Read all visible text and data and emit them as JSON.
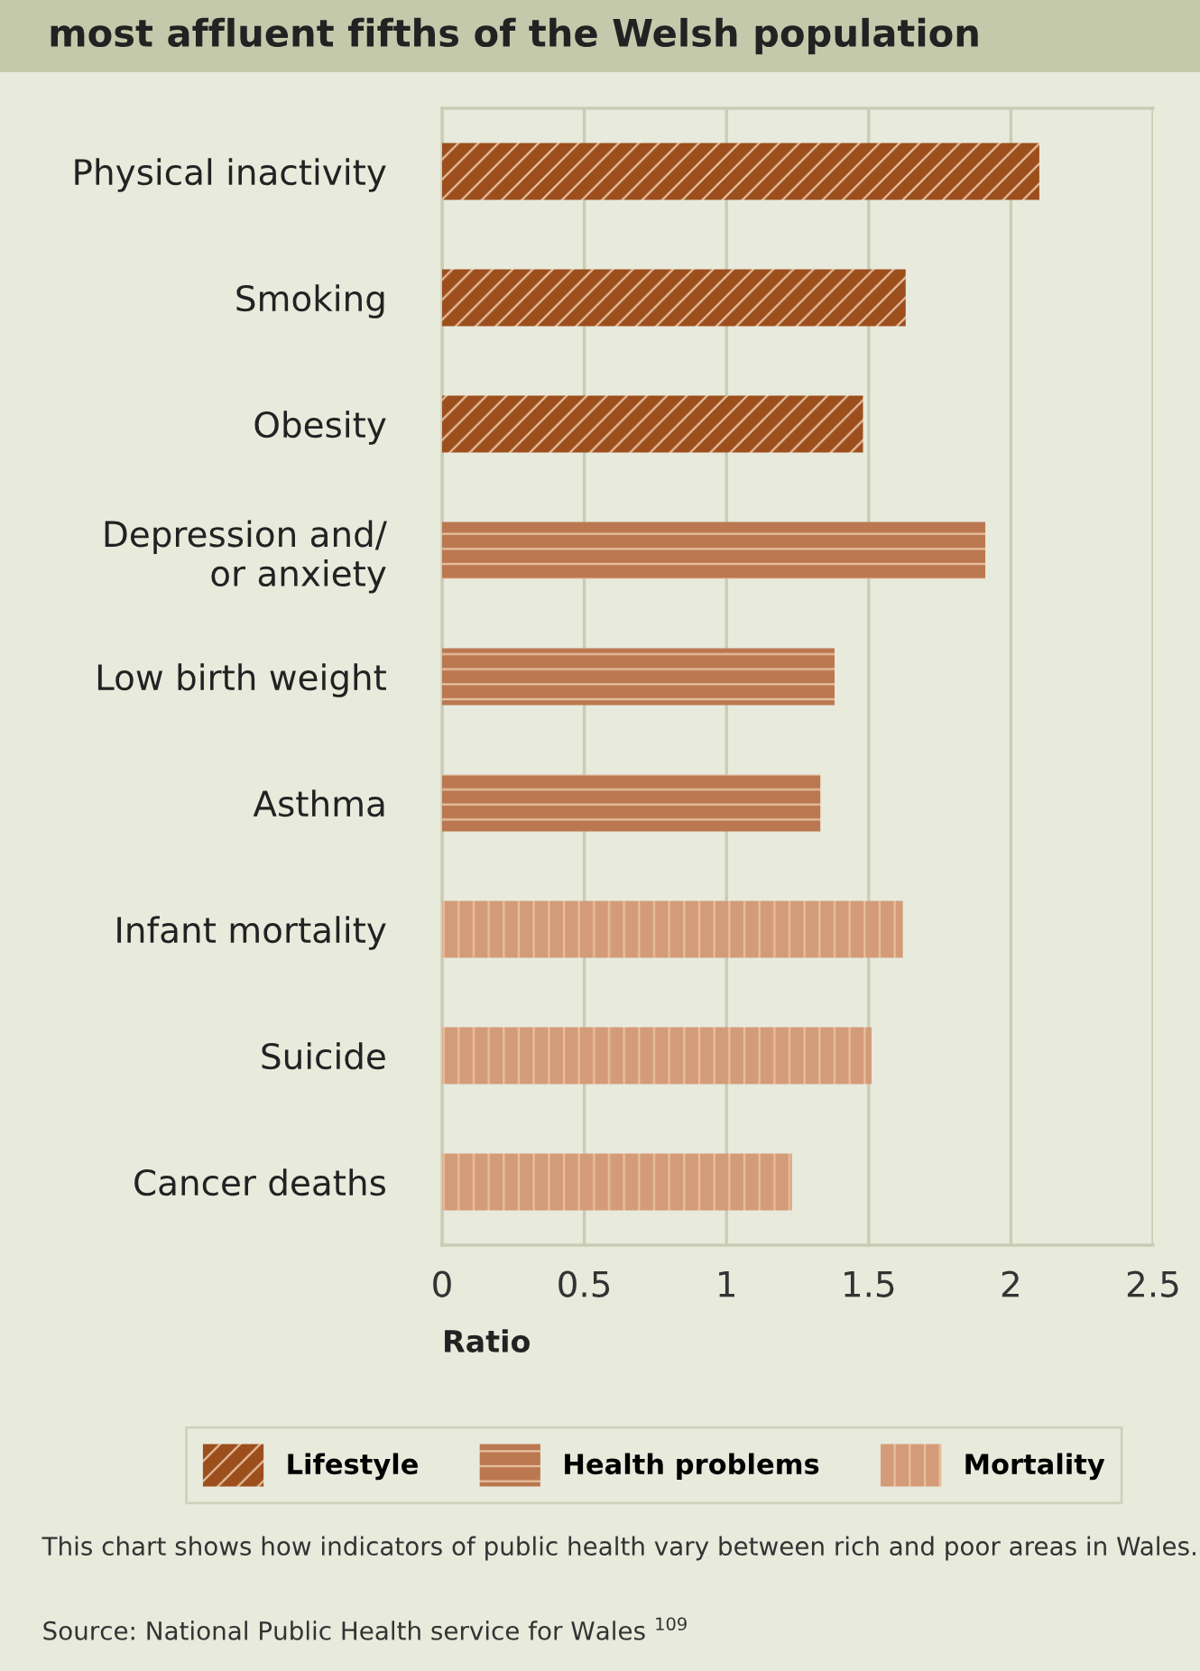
{
  "chart_data": {
    "type": "bar",
    "orientation": "horizontal",
    "title": "most affluent fifths of the Welsh population",
    "categories": [
      "Physical inactivity",
      "Smoking",
      "Obesity",
      "Depression and/\nor anxiety",
      "Low birth weight",
      "Asthma",
      "Infant mortality",
      "Suicide",
      "Cancer deaths"
    ],
    "series": [
      {
        "name": "Lifestyle",
        "color": "#9c4e1c",
        "values": [
          2.1,
          1.63,
          1.48,
          null,
          null,
          null,
          null,
          null,
          null
        ]
      },
      {
        "name": "Health problems",
        "color": "#bb7850",
        "values": [
          null,
          null,
          null,
          1.91,
          1.38,
          1.33,
          null,
          null,
          null
        ]
      },
      {
        "name": "Mortality",
        "color": "#d49b78",
        "values": [
          null,
          null,
          null,
          null,
          null,
          null,
          1.62,
          1.51,
          1.23
        ]
      }
    ],
    "xlabel": "Ratio",
    "xlim": [
      0,
      2.5
    ],
    "xticks": [
      0,
      0.5,
      1,
      1.5,
      2,
      2.5
    ],
    "grid": "x",
    "legend": "bottom",
    "annotations": [
      "This chart shows how indicators of public health vary between rich and poor areas in Wales.",
      "Source: National Public Health service for Wales $^{109}$"
    ]
  }
}
